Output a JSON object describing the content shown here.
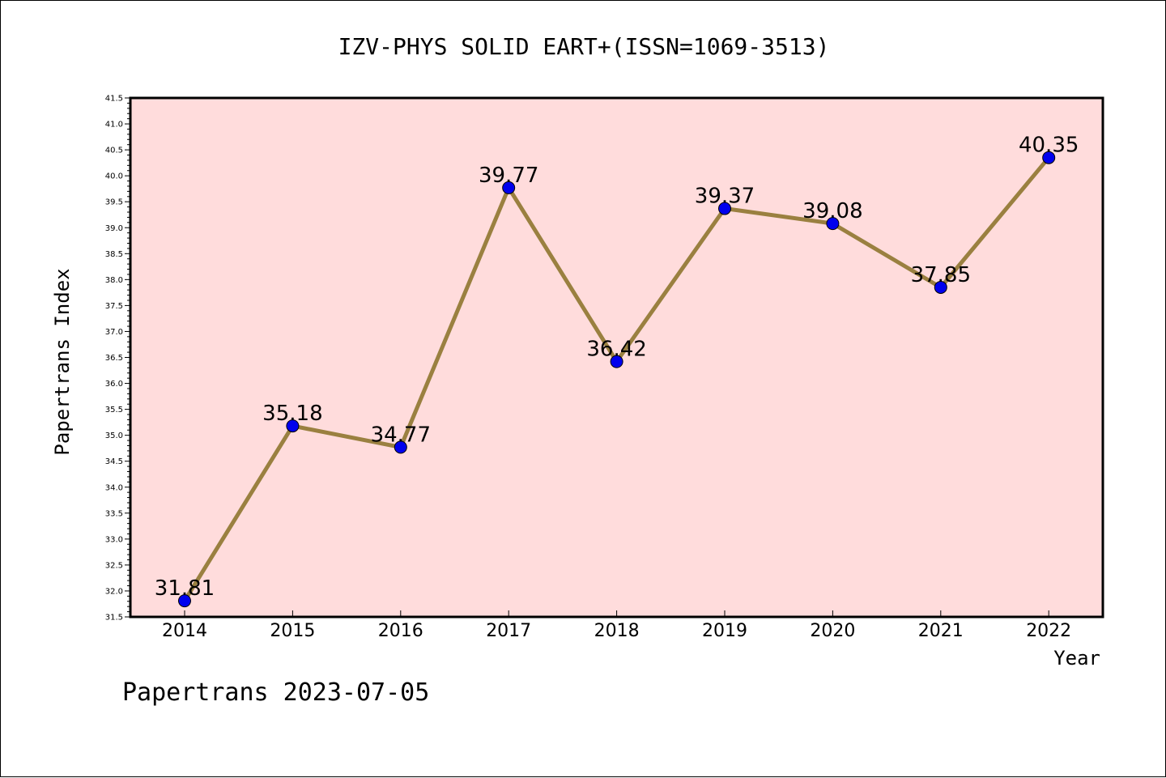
{
  "chart_data": {
    "type": "line",
    "title": "IZV-PHYS SOLID EART+(ISSN=1069-3513)",
    "xlabel": "Year",
    "ylabel": "Papertrans Index",
    "footer": "Papertrans 2023-07-05",
    "categories": [
      "2014",
      "2015",
      "2016",
      "2017",
      "2018",
      "2019",
      "2020",
      "2021",
      "2022"
    ],
    "values": [
      31.81,
      35.18,
      34.77,
      39.77,
      36.42,
      39.37,
      39.08,
      37.85,
      40.35
    ],
    "value_labels": [
      "31.81",
      "35.18",
      "34.77",
      "39.77",
      "36.42",
      "39.37",
      "39.08",
      "37.85",
      "40.35"
    ],
    "ylim": [
      31.5,
      41.5
    ],
    "yticks": [
      "31.5",
      "32.0",
      "32.5",
      "33.0",
      "33.5",
      "34.0",
      "34.5",
      "35.0",
      "35.5",
      "36.0",
      "36.5",
      "37.0",
      "37.5",
      "38.0",
      "38.5",
      "39.0",
      "39.5",
      "40.0",
      "40.5",
      "41.0",
      "41.5"
    ],
    "grid": false,
    "legend": "none",
    "colors": {
      "plot_background": "#ffdcdc",
      "line": "#9a8040",
      "marker": "#0000ee",
      "axis": "#000000"
    }
  }
}
